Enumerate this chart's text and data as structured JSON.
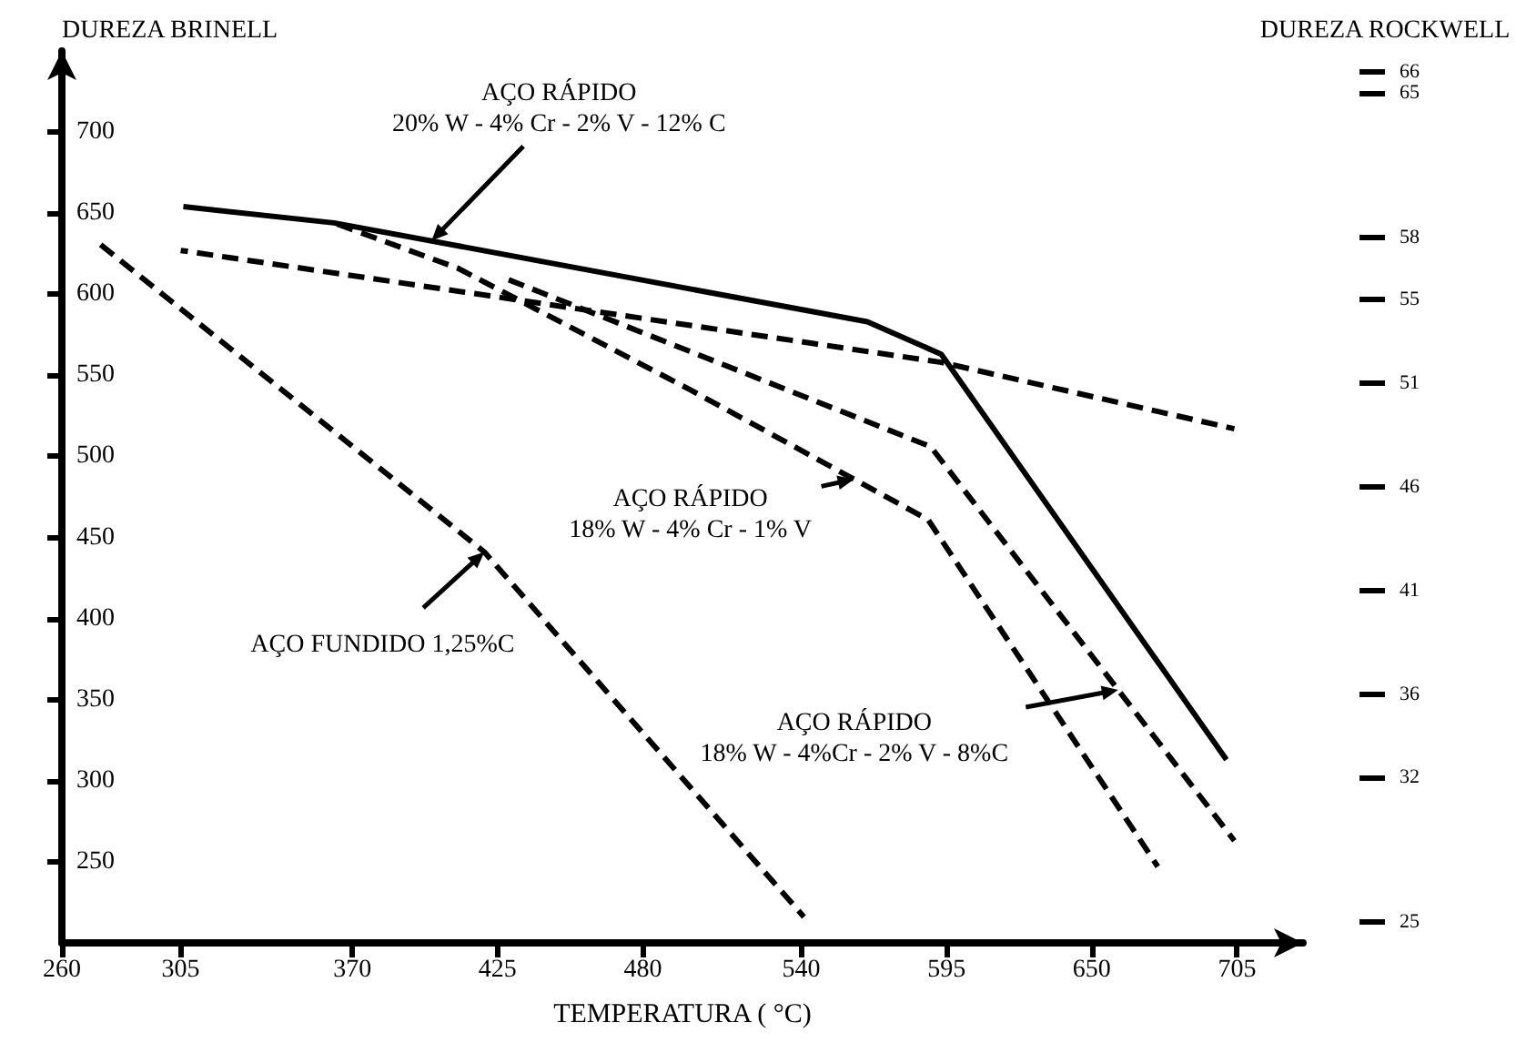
{
  "chart_data": {
    "type": "line",
    "xlabel": "TEMPERATURA ( °C)",
    "ylabel": "DUREZA BRINELL",
    "y2label": "DUREZA ROCKWELL",
    "xlim": [
      260,
      730
    ],
    "xticks": [
      260,
      305,
      370,
      425,
      480,
      540,
      595,
      650,
      705
    ],
    "ylim": [
      200,
      750
    ],
    "yticks": [
      250,
      300,
      350,
      400,
      450,
      500,
      550,
      600,
      650,
      700
    ],
    "y2lim": [
      24,
      67
    ],
    "y2ticks": [
      66,
      65,
      58,
      55,
      51,
      46,
      41,
      36,
      32,
      25
    ],
    "series": [
      {
        "color": "#000000",
        "line_style": "solid",
        "x": [
          306,
          363,
          565,
          593,
          701
        ],
        "values": [
          654,
          644,
          583,
          563,
          313
        ]
      },
      {
        "color": "#000000",
        "line_style": "dashed",
        "x": [
          363,
          410,
          498,
          588,
          675
        ],
        "values": [
          644,
          616,
          541,
          461,
          247
        ]
      },
      {
        "color": "#000000",
        "line_style": "dashed",
        "x": [
          426,
          589,
          704
        ],
        "values": [
          611,
          506,
          263
        ]
      },
      {
        "color": "#000000",
        "line_style": "dashed",
        "x": [
          305,
          422,
          593,
          704
        ],
        "values": [
          627,
          599,
          558,
          517
        ]
      },
      {
        "color": "#000000",
        "line_style": "dashed",
        "x": [
          272,
          420,
          541
        ],
        "values": [
          634,
          441,
          216
        ]
      }
    ],
    "annotations": [
      {
        "text": "AÇO RÁPIDO\n20% W - 4% Cr - 2% V - 12% C",
        "x": 400,
        "y": 633
      },
      {
        "text": "AÇO RÁPIDO\n18% W - 4% Cr - 1% V",
        "x": 560,
        "y": 486
      },
      {
        "text": "AÇO RÁPIDO\n18% W - 4%Cr - 2% V - 8%C",
        "x": 660,
        "y": 356
      },
      {
        "text": "AÇO FUNDIDO 1,25%C",
        "x": 420,
        "y": 441
      }
    ],
    "grid": false,
    "marker": "none"
  }
}
